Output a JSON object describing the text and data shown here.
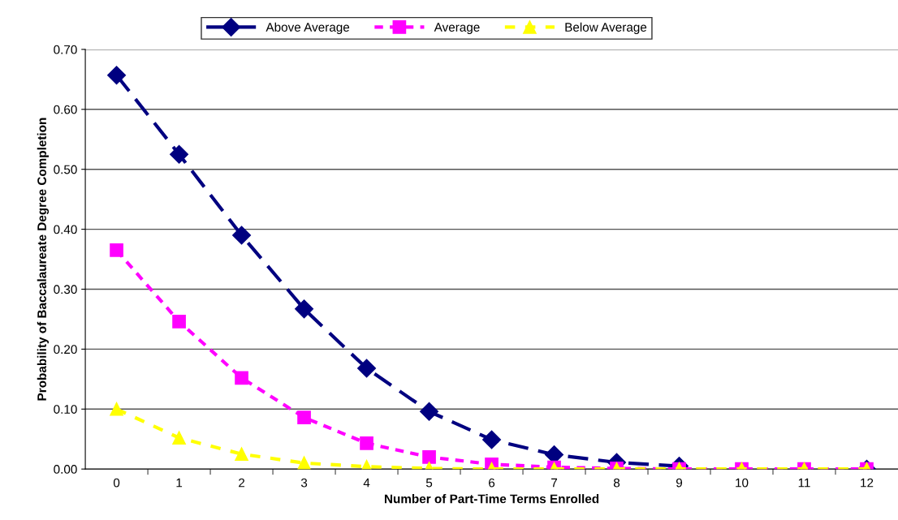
{
  "chart_data": {
    "type": "line",
    "xlabel": "Number of Part-Time Terms Enrolled",
    "ylabel": "Probability of Baccalaureate Degree Completion",
    "categories": [
      "0",
      "1",
      "2",
      "3",
      "4",
      "5",
      "6",
      "7",
      "8",
      "9",
      "10",
      "11",
      "12"
    ],
    "series": [
      {
        "name": "Above Average",
        "color": "#000080",
        "marker": "diamond",
        "line_style": "dashed",
        "values": [
          0.657,
          0.525,
          0.39,
          0.267,
          0.168,
          0.096,
          0.049,
          0.024,
          0.011,
          0.005,
          null,
          null,
          0.0
        ]
      },
      {
        "name": "Average",
        "color": "#ff00ff",
        "marker": "square",
        "line_style": "dashed",
        "values": [
          0.365,
          0.246,
          0.152,
          0.086,
          0.043,
          0.02,
          0.008,
          0.003,
          0.001,
          0.0,
          0.0,
          0.0,
          0.0
        ]
      },
      {
        "name": "Below Average",
        "color": "#ffff00",
        "marker": "triangle",
        "line_style": "dashed",
        "values": [
          0.1,
          0.052,
          0.025,
          0.01,
          0.004,
          0.001,
          0.0,
          0.0,
          0.0,
          0.0,
          0.0,
          0.0,
          0.0
        ]
      }
    ],
    "ylim": [
      0,
      0.7
    ],
    "yticks": [
      {
        "value": 0,
        "label": "0.00"
      },
      {
        "value": 0.1,
        "label": "0.10"
      },
      {
        "value": 0.2,
        "label": "0.20"
      },
      {
        "value": 0.3,
        "label": "0.30"
      },
      {
        "value": 0.4,
        "label": "0.40"
      },
      {
        "value": 0.5,
        "label": "0.50"
      },
      {
        "value": 0.6,
        "label": "0.60"
      },
      {
        "value": 0.7,
        "label": "0.70"
      }
    ],
    "grid": "y",
    "legend": "top"
  }
}
